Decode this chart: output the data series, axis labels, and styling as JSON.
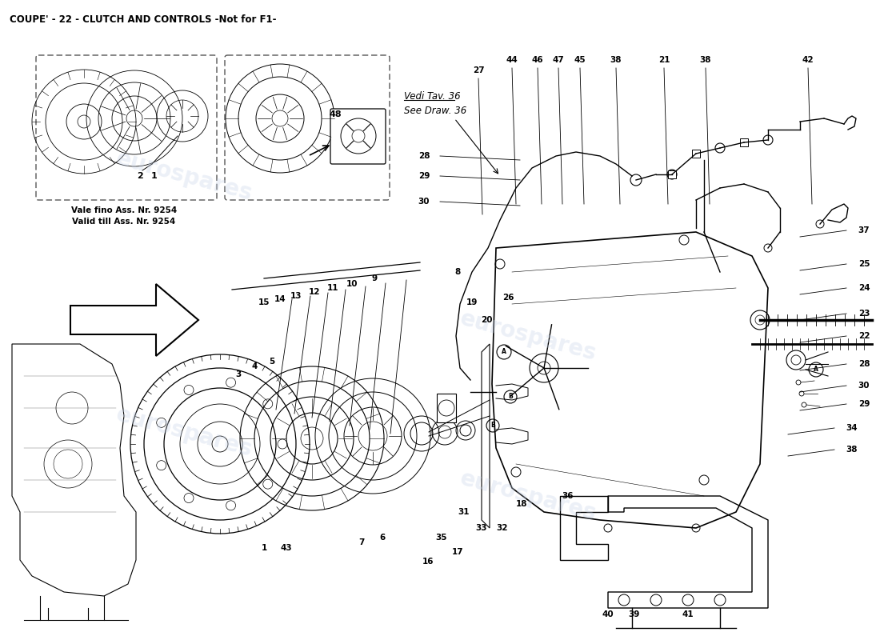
{
  "title": "COUPE' - 22 - CLUTCH AND CONTROLS -Not for F1-",
  "title_fontsize": 8.5,
  "bg_color": "#ffffff",
  "watermark_text": "eurospares",
  "watermark_color": "#c8d4e8",
  "watermark_alpha": 0.35,
  "vedi_text": "Vedi Tav. 36",
  "see_text": "See Draw. 36",
  "valid_text1": "Vale fino Ass. Nr. 9254",
  "valid_text2": "Valid till Ass. Nr. 9254",
  "top_labels": [
    [
      "27",
      598,
      88
    ],
    [
      "44",
      640,
      75
    ],
    [
      "46",
      672,
      75
    ],
    [
      "47",
      698,
      75
    ],
    [
      "45",
      725,
      75
    ],
    [
      "38",
      770,
      75
    ],
    [
      "21",
      830,
      75
    ],
    [
      "38",
      882,
      75
    ],
    [
      "42",
      1010,
      75
    ]
  ],
  "left_labels": [
    [
      "28",
      530,
      195
    ],
    [
      "29",
      530,
      220
    ],
    [
      "30",
      530,
      252
    ]
  ],
  "right_labels": [
    [
      "37",
      1080,
      288
    ],
    [
      "25",
      1080,
      330
    ],
    [
      "24",
      1080,
      360
    ],
    [
      "23",
      1080,
      392
    ],
    [
      "22",
      1080,
      420
    ],
    [
      "28",
      1080,
      455
    ],
    [
      "30",
      1080,
      482
    ],
    [
      "29",
      1080,
      505
    ],
    [
      "34",
      1065,
      535
    ],
    [
      "38",
      1065,
      562
    ]
  ],
  "bottom_labels": [
    [
      "31",
      580,
      640
    ],
    [
      "33",
      602,
      660
    ],
    [
      "32",
      628,
      660
    ],
    [
      "18",
      652,
      630
    ],
    [
      "36",
      710,
      620
    ],
    [
      "35",
      552,
      672
    ],
    [
      "17",
      572,
      690
    ],
    [
      "16",
      535,
      702
    ],
    [
      "40",
      760,
      768
    ],
    [
      "39",
      793,
      768
    ],
    [
      "41",
      860,
      768
    ]
  ],
  "middle_labels": [
    [
      "8",
      572,
      340
    ],
    [
      "19",
      590,
      378
    ],
    [
      "20",
      608,
      400
    ],
    [
      "26",
      635,
      372
    ],
    [
      "9",
      468,
      348
    ],
    [
      "10",
      440,
      355
    ],
    [
      "11",
      416,
      360
    ],
    [
      "12",
      393,
      365
    ],
    [
      "13",
      370,
      370
    ],
    [
      "14",
      350,
      374
    ],
    [
      "15",
      330,
      378
    ],
    [
      "3",
      298,
      468
    ],
    [
      "4",
      318,
      458
    ],
    [
      "5",
      340,
      452
    ],
    [
      "6",
      478,
      672
    ],
    [
      "7",
      452,
      678
    ],
    [
      "1",
      330,
      685
    ],
    [
      "43",
      358,
      685
    ]
  ]
}
